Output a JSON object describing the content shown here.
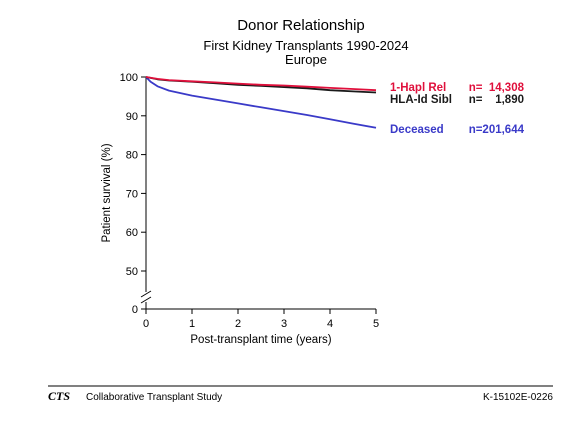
{
  "chart_data": {
    "type": "line",
    "title": "Donor Relationship",
    "subtitle": "First Kidney Transplants 1990-2024",
    "region": "Europe",
    "xlabel": "Post-transplant time (years)",
    "ylabel": "Patient survival (%)",
    "xlim": [
      0,
      5
    ],
    "ylim": [
      50,
      100
    ],
    "axis_break": "between 0 and 50",
    "x_ticks": [
      "0",
      "1",
      "2",
      "3",
      "4",
      "5"
    ],
    "y_ticks": [
      "100",
      "90",
      "80",
      "70",
      "60",
      "50",
      "0"
    ],
    "grid": false,
    "legend_position": "right",
    "series": [
      {
        "name": "1-Hapl Rel",
        "n_label": "n=  14,308",
        "color": "#e0103c",
        "x": [
          0,
          0.25,
          0.5,
          1,
          1.5,
          2,
          2.5,
          3,
          3.5,
          4,
          4.5,
          5
        ],
        "y": [
          100,
          99.5,
          99.2,
          98.9,
          98.6,
          98.3,
          98.0,
          97.8,
          97.5,
          97.2,
          96.9,
          96.6
        ]
      },
      {
        "name": "HLA-Id Sibl",
        "n_label": "n=    1,890",
        "color": "#1a1a1a",
        "x": [
          0,
          0.25,
          0.5,
          1,
          1.5,
          2,
          2.5,
          3,
          3.5,
          4,
          4.5,
          5
        ],
        "y": [
          100,
          99.4,
          99.1,
          98.8,
          98.4,
          98.0,
          97.7,
          97.4,
          97.1,
          96.6,
          96.3,
          96.0
        ]
      },
      {
        "name": "Deceased",
        "n_label": "n=201,644",
        "color": "#3a3ac8",
        "x": [
          0,
          0.1,
          0.25,
          0.5,
          1,
          1.5,
          2,
          2.5,
          3,
          3.5,
          4,
          4.5,
          5
        ],
        "y": [
          100,
          98.8,
          97.6,
          96.5,
          95.2,
          94.2,
          93.2,
          92.2,
          91.2,
          90.2,
          89.1,
          88.0,
          86.9
        ]
      }
    ]
  },
  "footer": {
    "logo": "CTS",
    "org_name": "Collaborative Transplant Study",
    "code": "K-15102E-0226"
  }
}
